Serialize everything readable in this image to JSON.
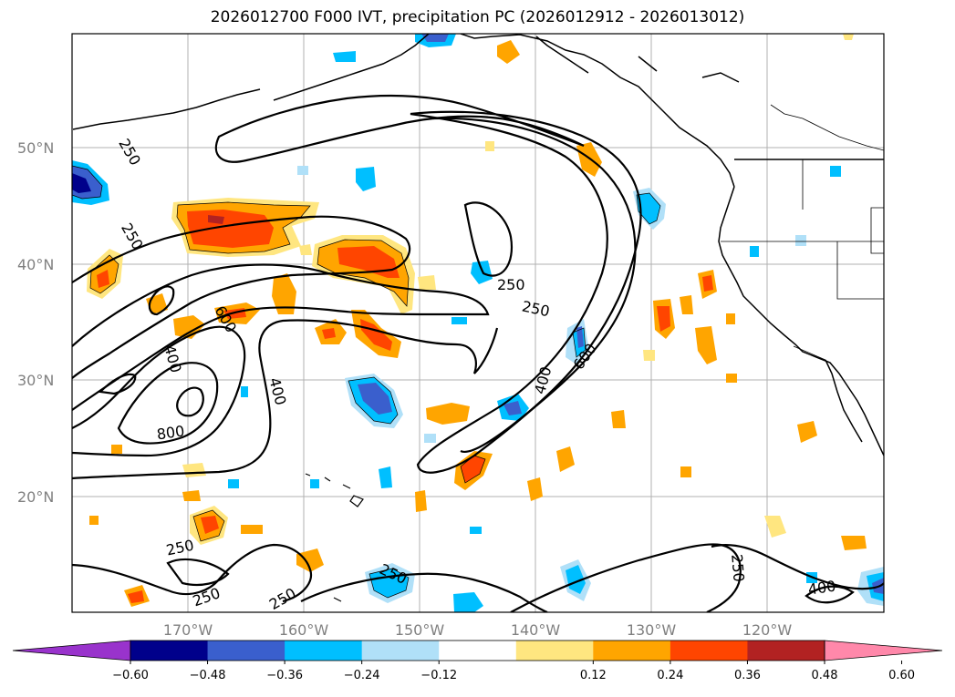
{
  "title": "2026012700 F000 IVT, precipitation PC (2026012912 - 2026013012)",
  "map": {
    "lon_range": [
      -180,
      -110
    ],
    "lat_range": [
      10,
      60
    ],
    "lat_labels": [
      "50°N",
      "40°N",
      "30°N",
      "20°N"
    ],
    "lon_labels": [
      "170°W",
      "160°W",
      "150°W",
      "140°W",
      "130°W",
      "120°W"
    ],
    "ivt_contour_labels": [
      "250",
      "250",
      "250",
      "250",
      "250",
      "250",
      "250",
      "250",
      "600",
      "600",
      "400",
      "400",
      "400",
      "800",
      "400"
    ]
  },
  "colorbar": {
    "tick_labels": [
      "−0.60",
      "−0.48",
      "−0.36",
      "−0.24",
      "−0.12",
      "0.12",
      "0.24",
      "0.36",
      "0.48",
      "0.60"
    ],
    "colors": [
      "#9933cc",
      "#00008b",
      "#3a5fcd",
      "#00bfff",
      "#b0e0f8",
      "#ffffff",
      "#ffe680",
      "#ffa500",
      "#ff4500",
      "#b22222",
      "#ff88aa"
    ]
  }
}
